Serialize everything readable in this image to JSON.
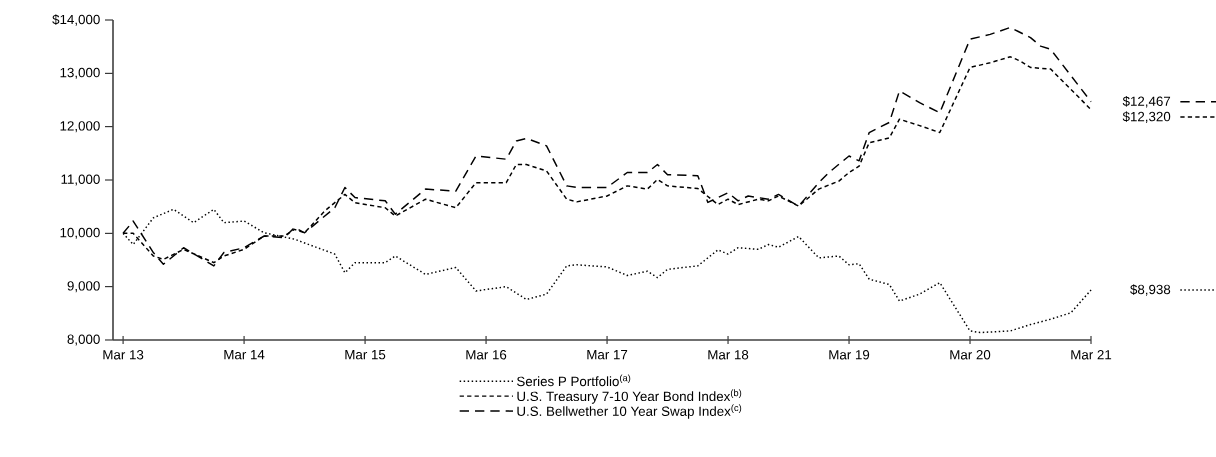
{
  "chart_data": {
    "type": "line",
    "xlim": [
      "2013-02",
      "2021-03"
    ],
    "xticks": [
      {
        "value": "2013-03",
        "label": "Mar 13"
      },
      {
        "value": "2014-03",
        "label": "Mar 14"
      },
      {
        "value": "2015-03",
        "label": "Mar 15"
      },
      {
        "value": "2016-03",
        "label": "Mar 16"
      },
      {
        "value": "2017-03",
        "label": "Mar 17"
      },
      {
        "value": "2018-03",
        "label": "Mar 18"
      },
      {
        "value": "2019-03",
        "label": "Mar 19"
      },
      {
        "value": "2020-03",
        "label": "Mar 20"
      },
      {
        "value": "2021-03",
        "label": "Mar 21"
      }
    ],
    "ylim": [
      8000,
      14000
    ],
    "yticks": [
      {
        "value": 8000,
        "label": "8,000"
      },
      {
        "value": 9000,
        "label": "9,000"
      },
      {
        "value": 10000,
        "label": "10,000"
      },
      {
        "value": 11000,
        "label": "11,000"
      },
      {
        "value": 12000,
        "label": "12,000"
      },
      {
        "value": 13000,
        "label": "13,000"
      },
      {
        "value": 14000,
        "label": "$14,000"
      }
    ],
    "legend": "bottom",
    "marker": "none",
    "series": [
      {
        "name": "Series P Portfolio$^{(a)}$",
        "color": "#000000",
        "line_style": "dotted",
        "x": [
          "2013-03",
          "2013-04",
          "2013-06",
          "2013-08",
          "2013-10",
          "2013-12",
          "2014-01",
          "2014-03",
          "2014-05",
          "2014-08",
          "2014-12",
          "2015-01",
          "2015-02",
          "2015-05",
          "2015-06",
          "2015-09",
          "2015-12",
          "2016-02",
          "2016-05",
          "2016-07",
          "2016-09",
          "2016-11",
          "2016-12",
          "2017-03",
          "2017-05",
          "2017-07",
          "2017-08",
          "2017-09",
          "2017-12",
          "2018-02",
          "2018-03",
          "2018-04",
          "2018-06",
          "2018-07",
          "2018-08",
          "2018-10",
          "2018-12",
          "2019-02",
          "2019-03",
          "2019-04",
          "2019-05",
          "2019-07",
          "2019-08",
          "2019-10",
          "2019-12",
          "2020-03",
          "2020-04",
          "2020-07",
          "2020-09",
          "2020-11",
          "2021-01",
          "2021-03"
        ],
        "values": [
          10000,
          9790,
          10290,
          10450,
          10200,
          10450,
          10200,
          10230,
          10010,
          9890,
          9610,
          9260,
          9450,
          9450,
          9575,
          9230,
          9360,
          8920,
          9000,
          8760,
          8860,
          9390,
          9410,
          9370,
          9210,
          9290,
          9170,
          9325,
          9390,
          9690,
          9610,
          9730,
          9700,
          9790,
          9740,
          9940,
          9540,
          9575,
          9410,
          9430,
          9140,
          9040,
          8730,
          8860,
          9075,
          8170,
          8140,
          8170,
          8290,
          8390,
          8510,
          8938
        ]
      },
      {
        "name": "U.S. Treasury 7-10 Year Bond Index$^{(b)}$",
        "color": "#000000",
        "line_style": "dashed",
        "x": [
          "2013-03",
          "2013-04",
          "2013-06",
          "2013-07",
          "2013-09",
          "2013-12",
          "2014-01",
          "2014-03",
          "2014-05",
          "2014-07",
          "2014-08",
          "2014-09",
          "2014-11",
          "2015-01",
          "2015-02",
          "2015-05",
          "2015-06",
          "2015-09",
          "2015-12",
          "2016-02",
          "2016-05",
          "2016-06",
          "2016-07",
          "2016-09",
          "2016-11",
          "2016-12",
          "2017-03",
          "2017-05",
          "2017-07",
          "2017-08",
          "2017-09",
          "2017-12",
          "2018-02",
          "2018-03",
          "2018-04",
          "2018-06",
          "2018-07",
          "2018-08",
          "2018-10",
          "2018-12",
          "2019-02",
          "2019-03",
          "2019-04",
          "2019-05",
          "2019-07",
          "2019-08",
          "2019-10",
          "2019-12",
          "2020-03",
          "2020-05",
          "2020-07",
          "2020-08",
          "2020-09",
          "2020-11",
          "2021-03"
        ],
        "values": [
          10000,
          10000,
          9575,
          9510,
          9700,
          9450,
          9575,
          9700,
          9950,
          9950,
          10075,
          10010,
          10420,
          10730,
          10575,
          10480,
          10325,
          10640,
          10480,
          10950,
          10950,
          11290,
          11290,
          11170,
          10640,
          10590,
          10700,
          10890,
          10830,
          11010,
          10890,
          10840,
          10540,
          10640,
          10540,
          10640,
          10610,
          10700,
          10510,
          10830,
          10980,
          11140,
          11260,
          11700,
          11790,
          12140,
          12020,
          11890,
          13110,
          13200,
          13310,
          13230,
          13110,
          13080,
          12320
        ]
      },
      {
        "name": "U.S. Bellwether 10 Year Swap Index$^{(c)}$",
        "color": "#000000",
        "line_style": "dashed",
        "x": [
          "2013-03",
          "2013-04",
          "2013-06",
          "2013-07",
          "2013-09",
          "2013-12",
          "2014-01",
          "2014-03",
          "2014-05",
          "2014-07",
          "2014-08",
          "2014-09",
          "2014-12",
          "2015-01",
          "2015-02",
          "2015-05",
          "2015-06",
          "2015-09",
          "2015-12",
          "2016-02",
          "2016-05",
          "2016-06",
          "2016-07",
          "2016-09",
          "2016-11",
          "2016-12",
          "2017-03",
          "2017-05",
          "2017-07",
          "2017-08",
          "2017-09",
          "2017-12",
          "2018-01",
          "2018-03",
          "2018-04",
          "2018-05",
          "2018-07",
          "2018-08",
          "2018-10",
          "2018-12",
          "2019-01",
          "2019-03",
          "2019-04",
          "2019-05",
          "2019-07",
          "2019-08",
          "2019-10",
          "2019-12",
          "2020-03",
          "2020-05",
          "2020-07",
          "2020-09",
          "2020-10",
          "2020-11",
          "2021-03"
        ],
        "values": [
          10000,
          10230,
          9640,
          9420,
          9730,
          9390,
          9640,
          9730,
          9950,
          9920,
          10110,
          10010,
          10480,
          10860,
          10670,
          10610,
          10360,
          10830,
          10790,
          11450,
          11390,
          11730,
          11780,
          11640,
          10890,
          10860,
          10860,
          11140,
          11140,
          11290,
          11100,
          11080,
          10580,
          10760,
          10610,
          10700,
          10640,
          10730,
          10510,
          10950,
          11140,
          11450,
          11360,
          11890,
          12080,
          12670,
          12450,
          12260,
          13640,
          13730,
          13860,
          13670,
          13510,
          13450,
          12467
        ]
      }
    ],
    "annotations": [
      {
        "text": "$12,467",
        "x": "2021-03",
        "y": 12467
      },
      {
        "text": "$12,320",
        "x": "2021-03",
        "y": 12320
      },
      {
        "text": "$8,938",
        "x": "2021-03",
        "y": 8938
      }
    ]
  }
}
